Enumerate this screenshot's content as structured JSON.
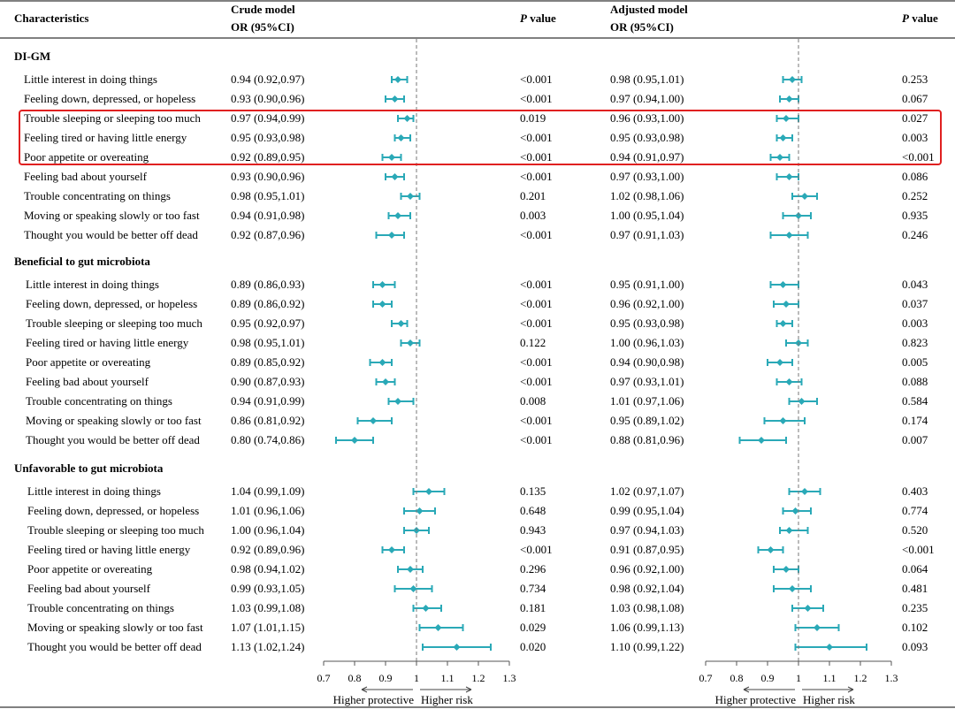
{
  "header": {
    "characteristics": "Characteristics",
    "crude_line1": "Crude model",
    "crude_line2": "OR (95%CI)",
    "pvalue_p": "P",
    "pvalue_word": " value",
    "adjusted_line1": "Adjusted model",
    "adjusted_line2": "OR (95%CI)"
  },
  "colors": {
    "accent": "#2aa9b7",
    "highlight_box": "#e02020",
    "axis": "#555555"
  },
  "footer": {
    "left_label": "Higher protective",
    "right_label": "Higher risk",
    "ticks": [
      "0.7",
      "0.8",
      "0.9",
      "1",
      "1.1",
      "1.2",
      "1.3"
    ]
  },
  "chart_data": [
    {
      "type": "forest",
      "panel": "Crude model",
      "xlim": [
        0.7,
        1.3
      ],
      "reference": 1,
      "ticks": [
        0.7,
        0.8,
        0.9,
        1,
        1.1,
        1.2,
        1.3
      ],
      "groups": [
        {
          "name": "DI-GM",
          "rows": [
            {
              "label": "Little interest in doing things",
              "text": "0.94 (0.92,0.97)",
              "or": 0.94,
              "lo": 0.92,
              "hi": 0.97,
              "p": "<0.001"
            },
            {
              "label": "Feeling down, depressed, or hopeless",
              "text": "0.93 (0.90,0.96)",
              "or": 0.93,
              "lo": 0.9,
              "hi": 0.96,
              "p": "<0.001"
            },
            {
              "label": "Trouble sleeping or sleeping too much",
              "text": "0.97 (0.94,0.99)",
              "or": 0.97,
              "lo": 0.94,
              "hi": 0.99,
              "p": "0.019"
            },
            {
              "label": "Feeling tired or having little energy",
              "text": "0.95 (0.93,0.98)",
              "or": 0.95,
              "lo": 0.93,
              "hi": 0.98,
              "p": "<0.001"
            },
            {
              "label": "Poor appetite or overeating",
              "text": "0.92 (0.89,0.95)",
              "or": 0.92,
              "lo": 0.89,
              "hi": 0.95,
              "p": "<0.001"
            },
            {
              "label": "Feeling bad about yourself",
              "text": "0.93 (0.90,0.96)",
              "or": 0.93,
              "lo": 0.9,
              "hi": 0.96,
              "p": "<0.001"
            },
            {
              "label": "Trouble concentrating on things",
              "text": "0.98 (0.95,1.01)",
              "or": 0.98,
              "lo": 0.95,
              "hi": 1.01,
              "p": "0.201"
            },
            {
              "label": "Moving or speaking slowly or too fast",
              "text": "0.94 (0.91,0.98)",
              "or": 0.94,
              "lo": 0.91,
              "hi": 0.98,
              "p": "0.003"
            },
            {
              "label": "Thought you would be better off dead",
              "text": "0.92 (0.87,0.96)",
              "or": 0.92,
              "lo": 0.87,
              "hi": 0.96,
              "p": "<0.001"
            }
          ]
        },
        {
          "name": "Beneficial to gut microbiota",
          "rows": [
            {
              "label": "Little interest in doing things",
              "text": "0.89 (0.86,0.93)",
              "or": 0.89,
              "lo": 0.86,
              "hi": 0.93,
              "p": "<0.001"
            },
            {
              "label": "Feeling down, depressed, or hopeless",
              "text": "0.89 (0.86,0.92)",
              "or": 0.89,
              "lo": 0.86,
              "hi": 0.92,
              "p": "<0.001"
            },
            {
              "label": "Trouble sleeping or sleeping too much",
              "text": "0.95 (0.92,0.97)",
              "or": 0.95,
              "lo": 0.92,
              "hi": 0.97,
              "p": "<0.001"
            },
            {
              "label": "Feeling tired or having little energy",
              "text": "0.98 (0.95,1.01)",
              "or": 0.98,
              "lo": 0.95,
              "hi": 1.01,
              "p": "0.122"
            },
            {
              "label": "Poor appetite or overeating",
              "text": "0.89 (0.85,0.92)",
              "or": 0.89,
              "lo": 0.85,
              "hi": 0.92,
              "p": "<0.001"
            },
            {
              "label": "Feeling bad about yourself",
              "text": "0.90 (0.87,0.93)",
              "or": 0.9,
              "lo": 0.87,
              "hi": 0.93,
              "p": "<0.001"
            },
            {
              "label": "Trouble concentrating on things",
              "text": "0.94 (0.91,0.99)",
              "or": 0.94,
              "lo": 0.91,
              "hi": 0.99,
              "p": "0.008"
            },
            {
              "label": "Moving or speaking slowly or too fast",
              "text": "0.86 (0.81,0.92)",
              "or": 0.86,
              "lo": 0.81,
              "hi": 0.92,
              "p": "<0.001"
            },
            {
              "label": "Thought you would be better off dead",
              "text": "0.80 (0.74,0.86)",
              "or": 0.8,
              "lo": 0.74,
              "hi": 0.86,
              "p": "<0.001"
            }
          ]
        },
        {
          "name": "Unfavorable to gut microbiota",
          "rows": [
            {
              "label": "Little interest in doing things",
              "text": "1.04 (0.99,1.09)",
              "or": 1.04,
              "lo": 0.99,
              "hi": 1.09,
              "p": "0.135"
            },
            {
              "label": "Feeling down, depressed, or hopeless",
              "text": "1.01 (0.96,1.06)",
              "or": 1.01,
              "lo": 0.96,
              "hi": 1.06,
              "p": "0.648"
            },
            {
              "label": "Trouble sleeping or sleeping too much",
              "text": "1.00 (0.96,1.04)",
              "or": 1.0,
              "lo": 0.96,
              "hi": 1.04,
              "p": "0.943"
            },
            {
              "label": "Feeling tired or having little energy",
              "text": "0.92 (0.89,0.96)",
              "or": 0.92,
              "lo": 0.89,
              "hi": 0.96,
              "p": "<0.001"
            },
            {
              "label": "Poor appetite or overeating",
              "text": "0.98 (0.94,1.02)",
              "or": 0.98,
              "lo": 0.94,
              "hi": 1.02,
              "p": "0.296"
            },
            {
              "label": "Feeling bad about yourself",
              "text": "0.99 (0.93,1.05)",
              "or": 0.99,
              "lo": 0.93,
              "hi": 1.05,
              "p": "0.734"
            },
            {
              "label": "Trouble concentrating on things",
              "text": "1.03 (0.99,1.08)",
              "or": 1.03,
              "lo": 0.99,
              "hi": 1.08,
              "p": "0.181"
            },
            {
              "label": "Moving or speaking slowly or too fast",
              "text": "1.07 (1.01,1.15)",
              "or": 1.07,
              "lo": 1.01,
              "hi": 1.15,
              "p": "0.029"
            },
            {
              "label": "Thought you would be better off dead",
              "text": "1.13 (1.02,1.24)",
              "or": 1.13,
              "lo": 1.02,
              "hi": 1.24,
              "p": "0.020"
            }
          ]
        }
      ]
    },
    {
      "type": "forest",
      "panel": "Adjusted model",
      "xlim": [
        0.7,
        1.3
      ],
      "reference": 1,
      "ticks": [
        0.7,
        0.8,
        0.9,
        1,
        1.1,
        1.2,
        1.3
      ],
      "groups": [
        {
          "name": "DI-GM",
          "rows": [
            {
              "label": "Little interest in doing things",
              "text": "0.98 (0.95,1.01)",
              "or": 0.98,
              "lo": 0.95,
              "hi": 1.01,
              "p": "0.253"
            },
            {
              "label": "Feeling down, depressed, or hopeless",
              "text": "0.97 (0.94,1.00)",
              "or": 0.97,
              "lo": 0.94,
              "hi": 1.0,
              "p": "0.067"
            },
            {
              "label": "Trouble sleeping or sleeping too much",
              "text": "0.96 (0.93,1.00)",
              "or": 0.96,
              "lo": 0.93,
              "hi": 1.0,
              "p": "0.027"
            },
            {
              "label": "Feeling tired or having little energy",
              "text": "0.95 (0.93,0.98)",
              "or": 0.95,
              "lo": 0.93,
              "hi": 0.98,
              "p": "0.003"
            },
            {
              "label": "Poor appetite or overeating",
              "text": "0.94 (0.91,0.97)",
              "or": 0.94,
              "lo": 0.91,
              "hi": 0.97,
              "p": "<0.001"
            },
            {
              "label": "Feeling bad about yourself",
              "text": "0.97 (0.93,1.00)",
              "or": 0.97,
              "lo": 0.93,
              "hi": 1.0,
              "p": "0.086"
            },
            {
              "label": "Trouble concentrating on things",
              "text": "1.02 (0.98,1.06)",
              "or": 1.02,
              "lo": 0.98,
              "hi": 1.06,
              "p": "0.252"
            },
            {
              "label": "Moving or speaking slowly or too fast",
              "text": "1.00 (0.95,1.04)",
              "or": 1.0,
              "lo": 0.95,
              "hi": 1.04,
              "p": "0.935"
            },
            {
              "label": "Thought you would be better off dead",
              "text": "0.97 (0.91,1.03)",
              "or": 0.97,
              "lo": 0.91,
              "hi": 1.03,
              "p": "0.246"
            }
          ]
        },
        {
          "name": "Beneficial to gut microbiota",
          "rows": [
            {
              "label": "Little interest in doing things",
              "text": "0.95 (0.91,1.00)",
              "or": 0.95,
              "lo": 0.91,
              "hi": 1.0,
              "p": "0.043"
            },
            {
              "label": "Feeling down, depressed, or hopeless",
              "text": "0.96 (0.92,1.00)",
              "or": 0.96,
              "lo": 0.92,
              "hi": 1.0,
              "p": "0.037"
            },
            {
              "label": "Trouble sleeping or sleeping too much",
              "text": "0.95 (0.93,0.98)",
              "or": 0.95,
              "lo": 0.93,
              "hi": 0.98,
              "p": "0.003"
            },
            {
              "label": "Feeling tired or having little energy",
              "text": "1.00 (0.96,1.03)",
              "or": 1.0,
              "lo": 0.96,
              "hi": 1.03,
              "p": "0.823"
            },
            {
              "label": "Poor appetite or overeating",
              "text": "0.94 (0.90,0.98)",
              "or": 0.94,
              "lo": 0.9,
              "hi": 0.98,
              "p": "0.005"
            },
            {
              "label": "Feeling bad about yourself",
              "text": "0.97 (0.93,1.01)",
              "or": 0.97,
              "lo": 0.93,
              "hi": 1.01,
              "p": "0.088"
            },
            {
              "label": "Trouble concentrating on things",
              "text": "1.01 (0.97,1.06)",
              "or": 1.01,
              "lo": 0.97,
              "hi": 1.06,
              "p": "0.584"
            },
            {
              "label": "Moving or speaking slowly or too fast",
              "text": "0.95 (0.89,1.02)",
              "or": 0.95,
              "lo": 0.89,
              "hi": 1.02,
              "p": "0.174"
            },
            {
              "label": "Thought you would be better off dead",
              "text": "0.88 (0.81,0.96)",
              "or": 0.88,
              "lo": 0.81,
              "hi": 0.96,
              "p": "0.007"
            }
          ]
        },
        {
          "name": "Unfavorable to gut microbiota",
          "rows": [
            {
              "label": "Little interest in doing things",
              "text": "1.02 (0.97,1.07)",
              "or": 1.02,
              "lo": 0.97,
              "hi": 1.07,
              "p": "0.403"
            },
            {
              "label": "Feeling down, depressed, or hopeless",
              "text": "0.99 (0.95,1.04)",
              "or": 0.99,
              "lo": 0.95,
              "hi": 1.04,
              "p": "0.774"
            },
            {
              "label": "Trouble sleeping or sleeping too much",
              "text": "0.97 (0.94,1.03)",
              "or": 0.97,
              "lo": 0.94,
              "hi": 1.03,
              "p": "0.520"
            },
            {
              "label": "Feeling tired or having little energy",
              "text": "0.91 (0.87,0.95)",
              "or": 0.91,
              "lo": 0.87,
              "hi": 0.95,
              "p": "<0.001"
            },
            {
              "label": "Poor appetite or overeating",
              "text": "0.96 (0.92,1.00)",
              "or": 0.96,
              "lo": 0.92,
              "hi": 1.0,
              "p": "0.064"
            },
            {
              "label": "Feeling bad about yourself",
              "text": "0.98 (0.92,1.04)",
              "or": 0.98,
              "lo": 0.92,
              "hi": 1.04,
              "p": "0.481"
            },
            {
              "label": "Trouble concentrating on things",
              "text": "1.03 (0.98,1.08)",
              "or": 1.03,
              "lo": 0.98,
              "hi": 1.08,
              "p": "0.235"
            },
            {
              "label": "Moving or speaking slowly or too fast",
              "text": "1.06 (0.99,1.13)",
              "or": 1.06,
              "lo": 0.99,
              "hi": 1.13,
              "p": "0.102"
            },
            {
              "label": "Thought you would be better off dead",
              "text": "1.10 (0.99,1.22)",
              "or": 1.1,
              "lo": 0.99,
              "hi": 1.22,
              "p": "0.093"
            }
          ]
        }
      ]
    }
  ]
}
